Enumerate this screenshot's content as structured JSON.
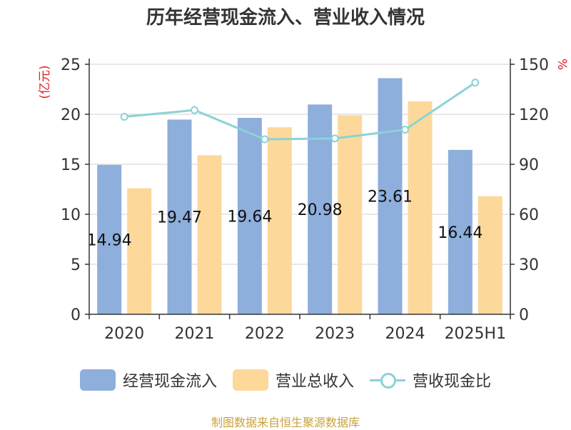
{
  "chart_data": {
    "type": "bar",
    "title": "历年经营现金流入、营业收入情况",
    "categories": [
      "2020",
      "2021",
      "2022",
      "2023",
      "2024",
      "2025H1"
    ],
    "ylabel_left": "(亿元)",
    "ylabel_right": "%",
    "ylim_left": [
      0,
      25
    ],
    "yticks_left": [
      0,
      5,
      10,
      15,
      20,
      25
    ],
    "ylim_right": [
      0,
      150
    ],
    "yticks_right": [
      0,
      30,
      60,
      90,
      120,
      150
    ],
    "grid": true,
    "legend_position": "bottom",
    "series": [
      {
        "name": "经营现金流入",
        "type": "bar",
        "axis": "left",
        "color": "#8eaedc",
        "values": [
          14.94,
          19.47,
          19.64,
          20.98,
          23.61,
          16.44
        ],
        "labels": [
          "14.94",
          "19.47",
          "19.64",
          "20.98",
          "23.61",
          "16.44"
        ]
      },
      {
        "name": "营业总收入",
        "type": "bar",
        "axis": "left",
        "color": "#fdd89b",
        "values": [
          12.6,
          15.9,
          18.7,
          19.9,
          21.3,
          11.8
        ]
      },
      {
        "name": "营收现金比",
        "type": "line",
        "axis": "right",
        "color": "#8ad3d6",
        "values": [
          118.5,
          122.5,
          105,
          105.5,
          110.8,
          139
        ]
      }
    ]
  },
  "source_text": "制图数据来自恒生聚源数据库"
}
